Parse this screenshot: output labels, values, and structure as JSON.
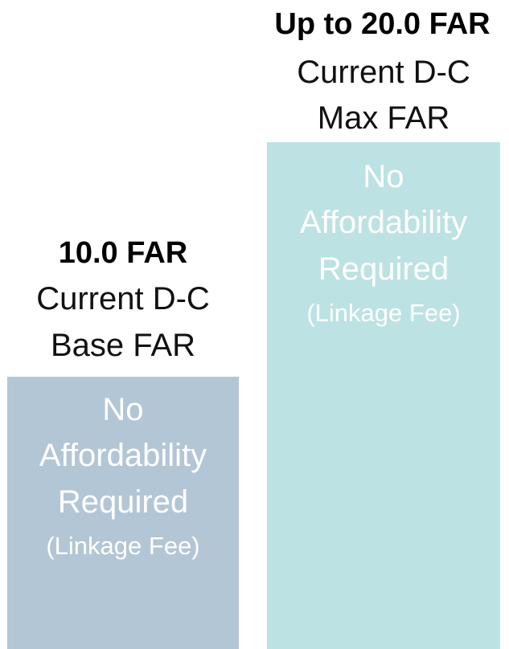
{
  "columns": [
    {
      "heading": "10.0 FAR",
      "lines": [
        "Current D-C",
        "Base FAR"
      ],
      "body": [
        "No",
        "Affordability",
        "Required"
      ],
      "note": "(Linkage Fee)"
    },
    {
      "heading": "Up to 20.0 FAR",
      "lines": [
        "Current D-C",
        "Max FAR"
      ],
      "body": [
        "No",
        "Affordability",
        "Required"
      ],
      "note": "(Linkage Fee)"
    }
  ]
}
